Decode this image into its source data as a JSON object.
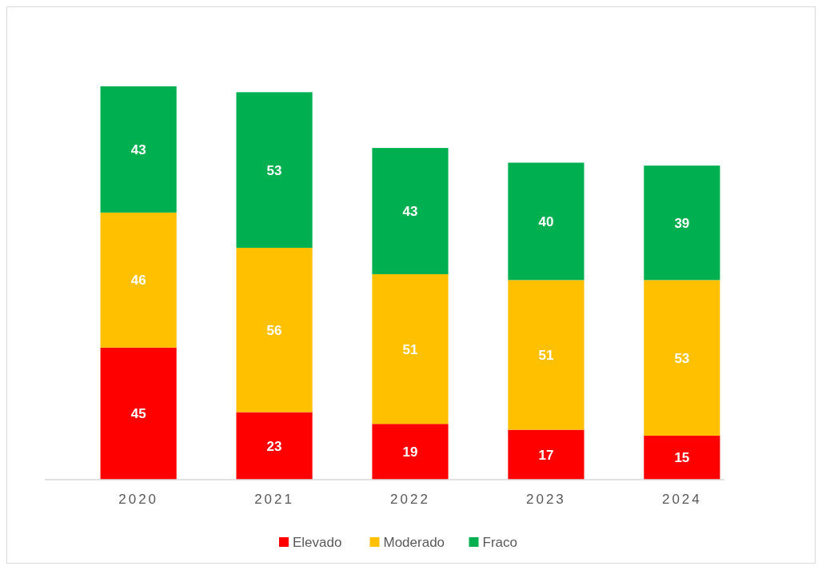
{
  "chart_data": {
    "type": "bar",
    "stacked": true,
    "categories": [
      "2020",
      "2021",
      "2022",
      "2023",
      "2024"
    ],
    "series": [
      {
        "name": "Elevado",
        "color": "#ff0000",
        "values": [
          45,
          23,
          19,
          17,
          15
        ]
      },
      {
        "name": "Moderado",
        "color": "#ffc000",
        "values": [
          46,
          56,
          51,
          51,
          53
        ]
      },
      {
        "name": "Fraco",
        "color": "#00b050",
        "values": [
          43,
          53,
          43,
          40,
          39
        ]
      }
    ],
    "data_labels": true,
    "legend": "bottom"
  }
}
